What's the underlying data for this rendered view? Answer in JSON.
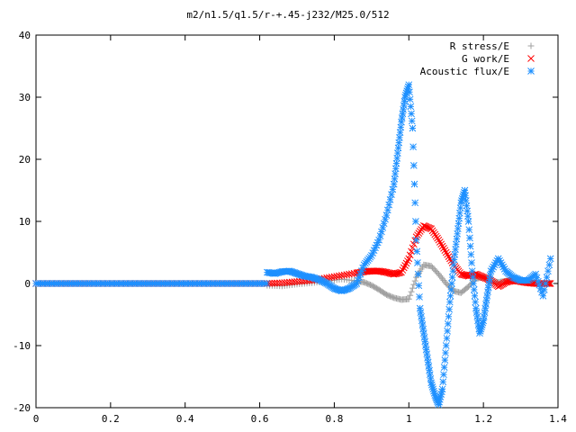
{
  "chart_data": {
    "type": "scatter",
    "title": "m2/n1.5/q1.5/r-+.45-j232/M25.0/512",
    "xlabel": "",
    "ylabel": "",
    "xlim": [
      0,
      1.4
    ],
    "ylim": [
      -20,
      40
    ],
    "x_ticks": [
      "0",
      "0.2",
      "0.4",
      "0.6",
      "0.8",
      "1",
      "1.2",
      "1.4"
    ],
    "y_ticks": [
      "-20",
      "-10",
      "0",
      "10",
      "20",
      "30",
      "40"
    ],
    "grid": false,
    "legend_position": "top-right",
    "series": [
      {
        "name": "R stress/E",
        "color": "#a0a0a0",
        "marker": "plus",
        "x": [
          0.62,
          0.66,
          0.7,
          0.74,
          0.78,
          0.82,
          0.86,
          0.88,
          0.9,
          0.92,
          0.94,
          0.96,
          0.98,
          1.0,
          1.02,
          1.04,
          1.06,
          1.08,
          1.1,
          1.12,
          1.14,
          1.16,
          1.18,
          1.2,
          1.22,
          1.24,
          1.26,
          1.28,
          1.3,
          1.32,
          1.34,
          1.36,
          1.38
        ],
        "y": [
          -0.3,
          -0.4,
          -0.1,
          0.1,
          0.4,
          0.7,
          0.4,
          0.2,
          -0.3,
          -1.0,
          -1.8,
          -2.3,
          -2.6,
          -2.5,
          1.0,
          3.0,
          2.8,
          1.5,
          0.0,
          -1.2,
          -1.5,
          -0.5,
          0.8,
          1.0,
          0.4,
          0.2,
          0.4,
          0.6,
          0.4,
          0.2,
          0.0,
          0.0,
          0.0
        ]
      },
      {
        "name": "G work/E",
        "color": "#ff0000",
        "marker": "cross",
        "x": [
          0.62,
          0.66,
          0.7,
          0.74,
          0.78,
          0.82,
          0.86,
          0.88,
          0.9,
          0.92,
          0.94,
          0.96,
          0.98,
          1.0,
          1.02,
          1.04,
          1.06,
          1.08,
          1.1,
          1.12,
          1.14,
          1.16,
          1.18,
          1.2,
          1.22,
          1.24,
          1.26,
          1.28,
          1.3,
          1.32,
          1.34,
          1.36,
          1.38
        ],
        "y": [
          0.0,
          0.1,
          0.3,
          0.5,
          0.9,
          1.3,
          1.7,
          1.9,
          2.0,
          2.0,
          1.8,
          1.5,
          1.8,
          4.0,
          7.5,
          9.3,
          8.8,
          7.0,
          5.0,
          3.0,
          1.5,
          1.2,
          1.5,
          1.0,
          0.5,
          -0.5,
          0.2,
          0.5,
          0.3,
          0.1,
          0.0,
          0.0,
          0.0
        ]
      },
      {
        "name": "Acoustic flux/E",
        "color": "#1e90ff",
        "marker": "star",
        "x": [
          0.62,
          0.64,
          0.66,
          0.68,
          0.7,
          0.72,
          0.74,
          0.76,
          0.78,
          0.8,
          0.82,
          0.84,
          0.86,
          0.88,
          0.9,
          0.92,
          0.94,
          0.96,
          0.97,
          0.98,
          0.99,
          1.0,
          1.01,
          1.02,
          1.03,
          1.04,
          1.05,
          1.06,
          1.07,
          1.08,
          1.09,
          1.1,
          1.11,
          1.12,
          1.13,
          1.14,
          1.15,
          1.16,
          1.17,
          1.18,
          1.19,
          1.2,
          1.21,
          1.22,
          1.24,
          1.26,
          1.28,
          1.3,
          1.32,
          1.34,
          1.36,
          1.38
        ],
        "y": [
          1.8,
          1.6,
          1.9,
          2.0,
          1.6,
          1.2,
          1.0,
          0.6,
          0.0,
          -0.8,
          -1.2,
          -0.8,
          0.0,
          3.0,
          4.5,
          7.0,
          11.0,
          16.0,
          21.0,
          26.0,
          30.0,
          32.0,
          25.0,
          7.0,
          -4.0,
          -8.0,
          -12.0,
          -16.0,
          -18.0,
          -19.5,
          -17.0,
          -10.0,
          -3.0,
          3.0,
          8.0,
          13.0,
          15.0,
          10.0,
          2.0,
          -4.0,
          -8.0,
          -6.0,
          -2.0,
          2.0,
          4.0,
          2.0,
          1.0,
          0.5,
          0.5,
          1.5,
          -2.0,
          4.0
        ]
      }
    ]
  }
}
